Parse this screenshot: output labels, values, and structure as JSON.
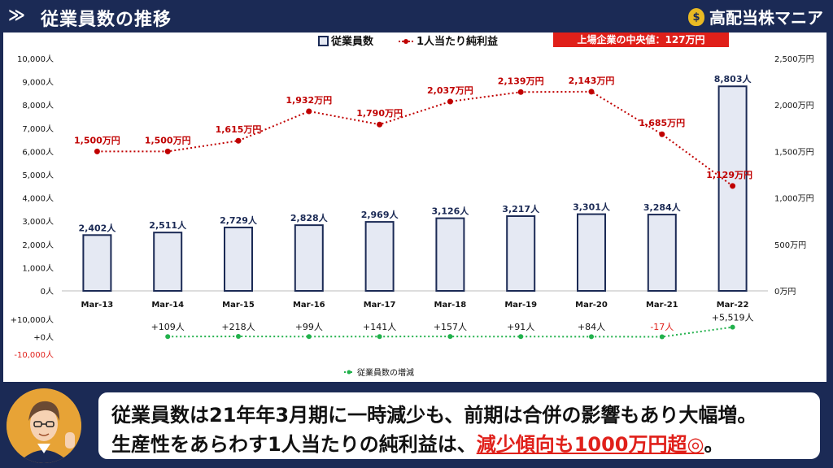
{
  "header": {
    "title": "従業員数の推移",
    "brand": "高配当株マニア"
  },
  "chart_data": {
    "type": "bar",
    "categories": [
      "Mar-13",
      "Mar-14",
      "Mar-15",
      "Mar-16",
      "Mar-17",
      "Mar-18",
      "Mar-19",
      "Mar-20",
      "Mar-21",
      "Mar-22"
    ],
    "series": [
      {
        "name": "従業員数",
        "type": "bar",
        "values": [
          2402,
          2511,
          2729,
          2828,
          2969,
          3126,
          3217,
          3301,
          3284,
          8803
        ],
        "labels": [
          "2,402人",
          "2,511人",
          "2,729人",
          "2,828人",
          "2,969人",
          "3,126人",
          "3,217人",
          "3,301人",
          "3,284人",
          "8,803人"
        ]
      },
      {
        "name": "1人当たり純利益",
        "type": "line",
        "values": [
          1500,
          1500,
          1615,
          1932,
          1790,
          2037,
          2139,
          2143,
          1685,
          1129
        ],
        "labels": [
          "1,500万円",
          "1,500万円",
          "1,615万円",
          "1,932万円",
          "1,790万円",
          "2,037万円",
          "2,139万円",
          "2,143万円",
          "1,685万円",
          "1,129万円"
        ]
      },
      {
        "name": "従業員数の増減",
        "type": "line",
        "values": [
          null,
          109,
          218,
          99,
          141,
          157,
          91,
          84,
          -17,
          5519
        ],
        "labels": [
          "",
          "+109人",
          "+218人",
          "+99人",
          "+141人",
          "+157人",
          "+91人",
          "+84人",
          "-17人",
          "+5,519人"
        ]
      }
    ],
    "y_left": {
      "ylim": [
        0,
        10000
      ],
      "ticks": [
        "0人",
        "1,000人",
        "2,000人",
        "3,000人",
        "4,000人",
        "5,000人",
        "6,000人",
        "7,000人",
        "8,000人",
        "9,000人",
        "10,000人"
      ]
    },
    "y_right": {
      "ylim": [
        0,
        2500
      ],
      "ticks": [
        "0万円",
        "500万円",
        "1,000万円",
        "1,500万円",
        "2,000万円",
        "2,500万円"
      ]
    },
    "y_change": {
      "ylim": [
        -10000,
        10000
      ],
      "ticks": [
        "+10,000人",
        "+0人",
        "-10,000人"
      ]
    },
    "annotation": "上場企業の中央値：127万円",
    "legend_top": [
      "従業員数",
      "1人当たり純利益"
    ],
    "legend_bottom": "従業員数の増減",
    "colors": {
      "bar_fill": "#e5e9f3",
      "bar_stroke": "#1b2a55",
      "line_red": "#c00000",
      "line_green": "#22b14c",
      "negative": "#e0201a"
    }
  },
  "caption": {
    "line1": "従業員数は21年年3月期に一時減少も、前期は合併の影響もあり大幅増。",
    "line2_prefix": "生産性をあらわす1人当たりの純利益は、",
    "line2_highlight": "減少傾向も1000万円超◎",
    "line2_suffix": "。"
  }
}
